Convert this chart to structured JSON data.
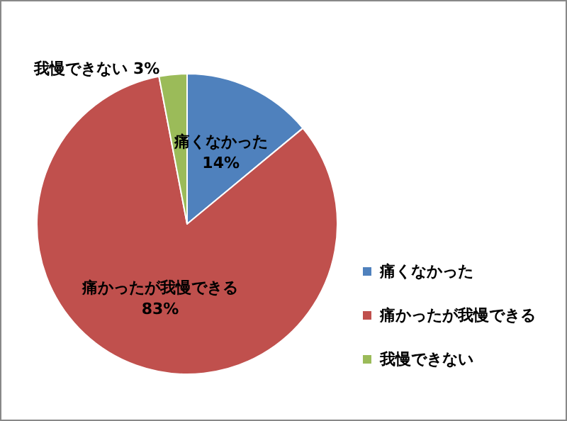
{
  "chart_data": {
    "type": "pie",
    "categories": [
      "痛くなかった",
      "痛かったが我慢できる",
      "我慢できない"
    ],
    "values": [
      14,
      83,
      3
    ],
    "value_labels": [
      "14%",
      "83%",
      "3%"
    ],
    "colors": [
      "#4f81bd",
      "#c0504d",
      "#9bbb59"
    ],
    "legend": "right"
  }
}
